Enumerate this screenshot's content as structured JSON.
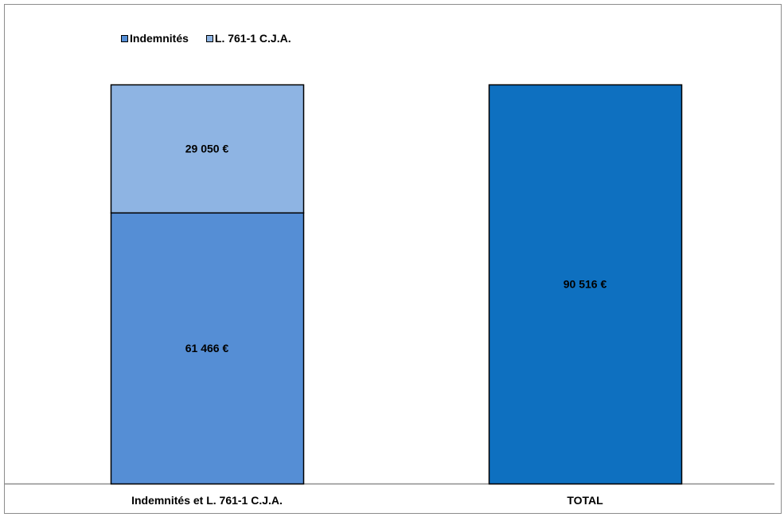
{
  "chart_data": {
    "type": "bar",
    "stacked": true,
    "categories": [
      "Indemnités et L. 761-1 C.J.A.",
      "TOTAL"
    ],
    "series": [
      {
        "name": "Indemnités",
        "values": [
          61466,
          null
        ],
        "labels": [
          "61 466 €",
          ""
        ],
        "color": "#558ed5"
      },
      {
        "name": "L. 761-1 C.J.A.",
        "values": [
          29050,
          null
        ],
        "labels": [
          "29 050 €",
          ""
        ],
        "color": "#8eb4e3"
      },
      {
        "name": "",
        "values": [
          null,
          90516
        ],
        "labels": [
          "",
          "90 516 €"
        ],
        "color": "#0e70c0"
      }
    ],
    "ylim": [
      0,
      90516
    ],
    "grid": false,
    "legend_position": "top-left",
    "title": "",
    "xlabel": "",
    "ylabel": ""
  },
  "legend": {
    "items": [
      {
        "label": "Indemnités",
        "color": "#558ed5"
      },
      {
        "label": "L. 761-1 C.J.A.",
        "color": "#8eb4e3"
      }
    ]
  }
}
